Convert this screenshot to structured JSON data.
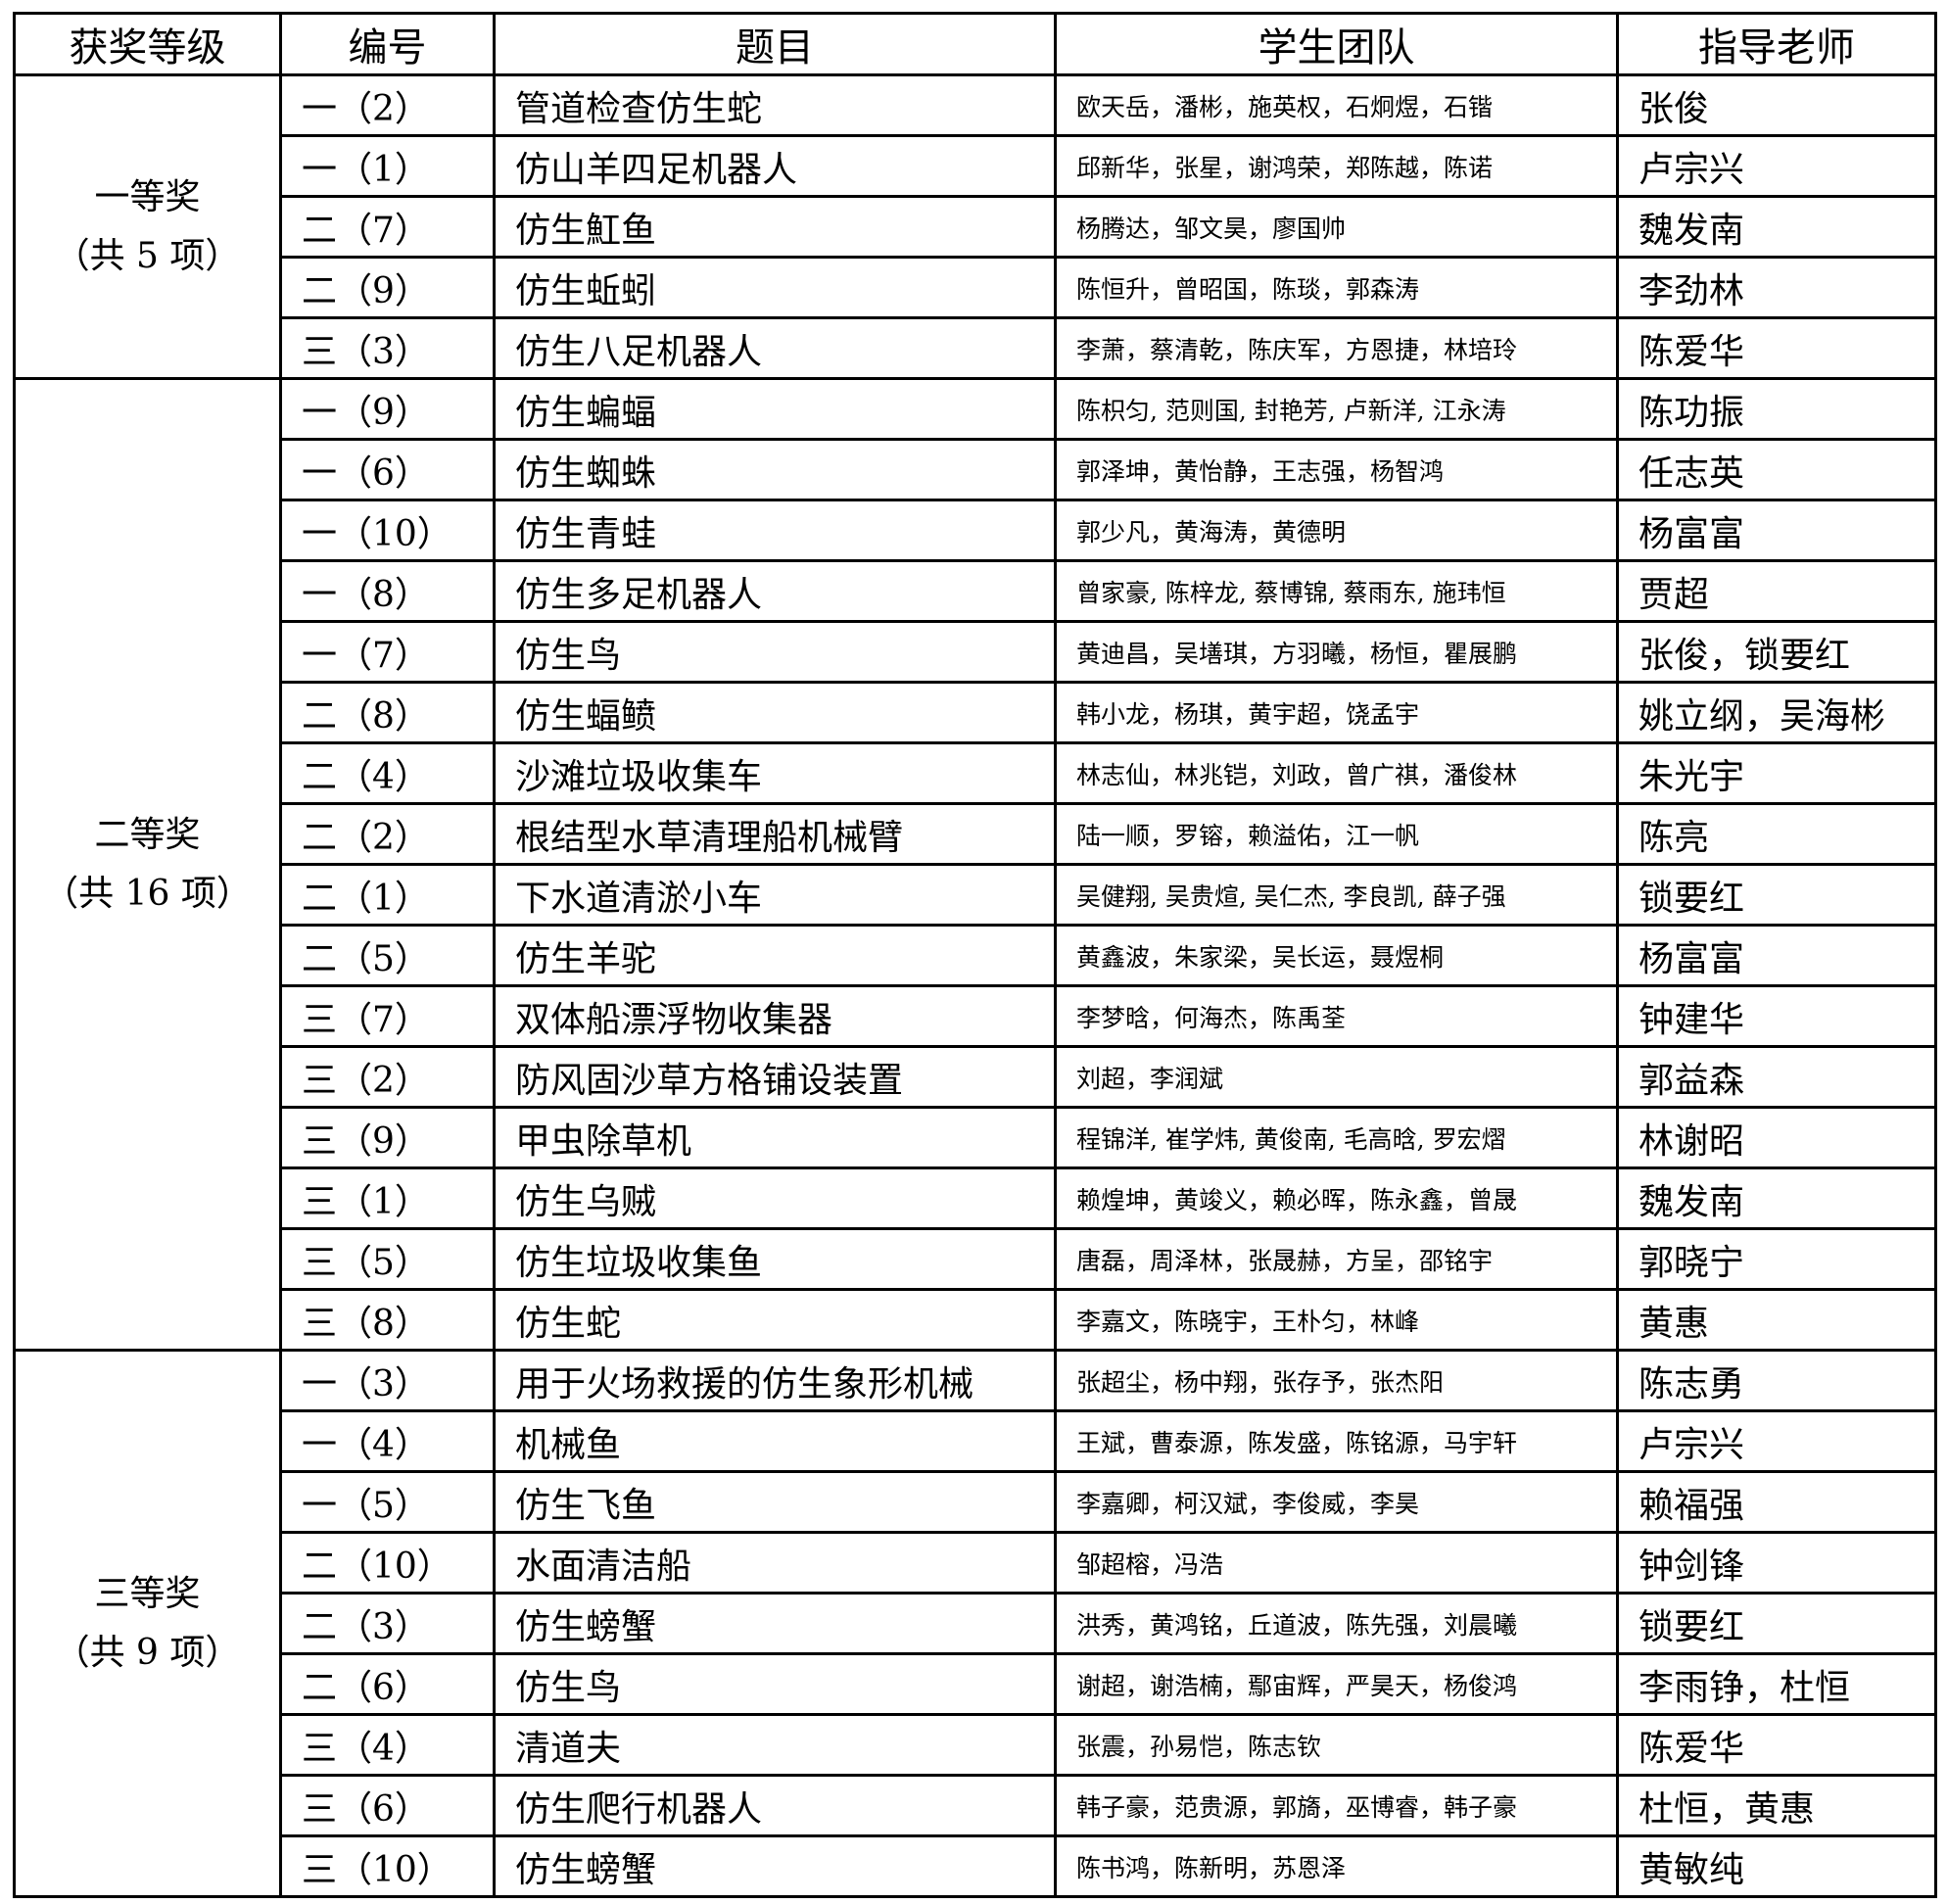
{
  "headers": [
    "获奖等级",
    "编号",
    "题目",
    "学生团队",
    "指导老师"
  ],
  "groups": [
    {
      "grade": "一等奖",
      "count": "（共 5 项）",
      "rows": [
        {
          "code": "一（2）",
          "title": "管道检查仿生蛇",
          "students": "欧天岳，潘彬，施英权，石炯煜，石锴",
          "teacher": "张俊"
        },
        {
          "code": "一（1）",
          "title": "仿山羊四足机器人",
          "students": "邱新华，张星，谢鸿荣，郑陈越，陈诺",
          "teacher": "卢宗兴"
        },
        {
          "code": "二（7）",
          "title": "仿生魟鱼",
          "students": "杨腾达，邹文昊，廖国帅",
          "teacher": "魏发南"
        },
        {
          "code": "二（9）",
          "title": "仿生蚯蚓",
          "students": "陈恒升，曾昭国，陈琰，郭森涛",
          "teacher": "李劲林"
        },
        {
          "code": "三（3）",
          "title": "仿生八足机器人",
          "students": "李萧，蔡清乾，陈庆军，方恩捷，林培玲",
          "teacher": "陈爱华"
        }
      ]
    },
    {
      "grade": "二等奖",
      "count": "（共 16 项）",
      "rows": [
        {
          "code": "一（9）",
          "title": "仿生蝙蝠",
          "students": "陈枳匀, 范则国, 封艳芳, 卢新洋, 江永涛",
          "teacher": "陈功振"
        },
        {
          "code": "一（6）",
          "title": "仿生蜘蛛",
          "students": "郭泽坤，黄怡静，王志强，杨智鸿",
          "teacher": "任志英"
        },
        {
          "code": "一（10）",
          "title": "仿生青蛙",
          "students": "郭少凡，黄海涛，黄德明",
          "teacher": "杨富富"
        },
        {
          "code": "一（8）",
          "title": "仿生多足机器人",
          "students": "曾家豪, 陈梓龙, 蔡博锦, 蔡雨东, 施玮恒",
          "teacher": "贾超"
        },
        {
          "code": "一（7）",
          "title": "仿生鸟",
          "students": "黄迪昌，吴墡琪，方羽曦，杨恒，瞿展鹏",
          "teacher": "张俊，锁要红"
        },
        {
          "code": "二（8）",
          "title": "仿生蝠鲼",
          "students": "韩小龙，杨琪，黄宇超，饶孟宇",
          "teacher": "姚立纲，吴海彬"
        },
        {
          "code": "二（4）",
          "title": "沙滩垃圾收集车",
          "students": "林志仙，林兆铠，刘政，曾广祺，潘俊林",
          "teacher": "朱光宇"
        },
        {
          "code": "二（2）",
          "title": "根结型水草清理船机械臂",
          "students": "陆一顺，罗镕，赖溢佑，江一帆",
          "teacher": "陈亮"
        },
        {
          "code": "二（1）",
          "title": "下水道清淤小车",
          "students": "吴健翔, 吴贵煊, 吴仁杰, 李良凯, 薛子强",
          "teacher": "锁要红"
        },
        {
          "code": "二（5）",
          "title": "仿生羊驼",
          "students": "黄鑫波，朱家梁，吴长运，聂煜桐",
          "teacher": "杨富富"
        },
        {
          "code": "三（7）",
          "title": "双体船漂浮物收集器",
          "students": "李梦晗，何海杰，陈禹荃",
          "teacher": "钟建华"
        },
        {
          "code": "三（2）",
          "title": "防风固沙草方格铺设装置",
          "students": "刘超，李润斌",
          "teacher": "郭益森"
        },
        {
          "code": "三（9）",
          "title": "甲虫除草机",
          "students": "程锦洋, 崔学炜, 黄俊南, 毛高晗, 罗宏熠",
          "teacher": "林谢昭"
        },
        {
          "code": "三（1）",
          "title": "仿生乌贼",
          "students": "赖煌坤，黄竣义，赖必晖，陈永鑫，曾晟",
          "teacher": "魏发南"
        },
        {
          "code": "三（5）",
          "title": "仿生垃圾收集鱼",
          "students": "唐磊，周泽林，张晟赫，方呈，邵铭宇",
          "teacher": "郭晓宁"
        },
        {
          "code": "三（8）",
          "title": "仿生蛇",
          "students": "李嘉文，陈晓宇，王朴匀，林峰",
          "teacher": "黄惠"
        }
      ]
    },
    {
      "grade": "三等奖",
      "count": "（共 9 项）",
      "rows": [
        {
          "code": "一（3）",
          "title": "用于火场救援的仿生象形机械",
          "students": "张超尘，杨中翔，张存予，张杰阳",
          "teacher": "陈志勇"
        },
        {
          "code": "一（4）",
          "title": "机械鱼",
          "students": "王斌，曹泰源，陈发盛，陈铭源，马宇轩",
          "teacher": "卢宗兴"
        },
        {
          "code": "一（5）",
          "title": "仿生飞鱼",
          "students": "李嘉卿，柯汉斌，李俊威，李昊",
          "teacher": "赖福强"
        },
        {
          "code": "二（10）",
          "title": "水面清洁船",
          "students": "邹超榕，冯浩",
          "teacher": "钟剑锋"
        },
        {
          "code": "二（3）",
          "title": "仿生螃蟹",
          "students": "洪秀，黄鸿铭，丘道波，陈先强，刘晨曦",
          "teacher": "锁要红"
        },
        {
          "code": "二（6）",
          "title": "仿生鸟",
          "students": "谢超，谢浩楠，鄢宙辉，严昊天，杨俊鸿",
          "teacher": "李雨铮，杜恒"
        },
        {
          "code": "三（4）",
          "title": "清道夫",
          "students": "张震，孙易恺，陈志钦",
          "teacher": "陈爱华"
        },
        {
          "code": "三（6）",
          "title": "仿生爬行机器人",
          "students": "韩子豪，范贵源，郭旖，巫博睿，韩子豪",
          "teacher": "杜恒，黄惠"
        },
        {
          "code": "三（10）",
          "title": "仿生螃蟹",
          "students": "陈书鸿，陈新明，苏恩泽",
          "teacher": "黄敏纯"
        }
      ]
    }
  ]
}
